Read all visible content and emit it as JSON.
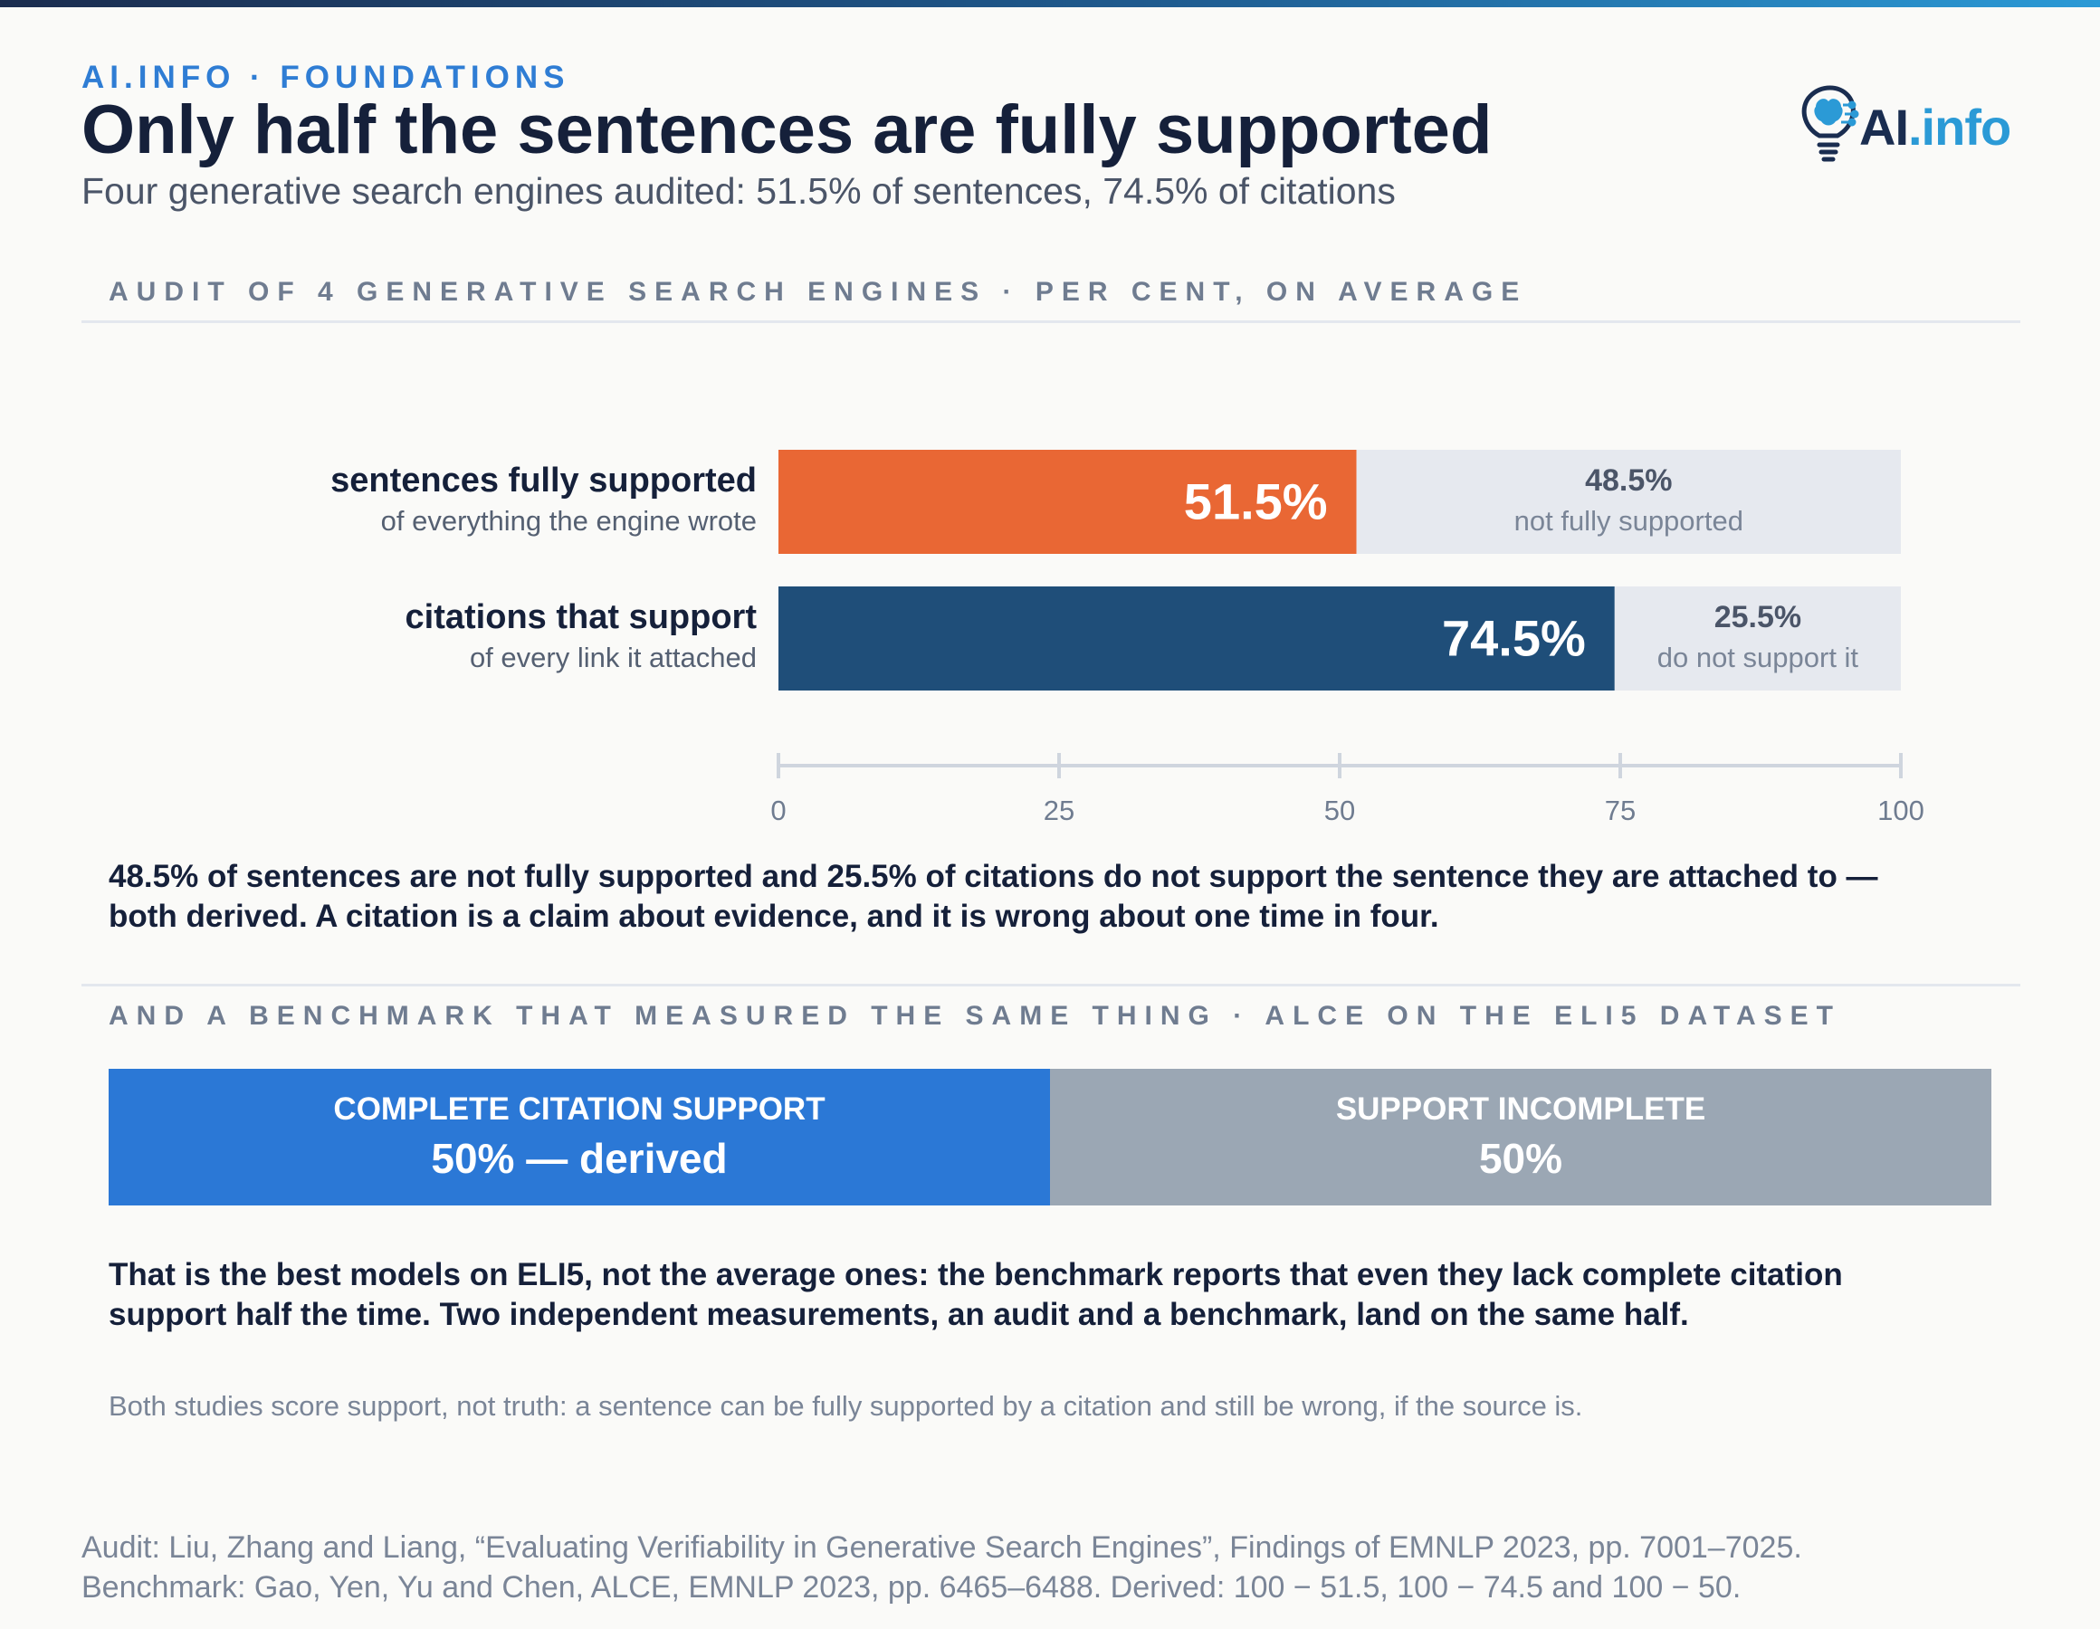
{
  "header": {
    "kicker": "AI.INFO · FOUNDATIONS",
    "title": "Only half the sentences are fully supported",
    "subtitle": "Four generative search engines audited: 51.5% of sentences, 74.5% of citations",
    "logo_ai": "AI",
    "logo_info": ".info"
  },
  "section1": {
    "label": "AUDIT OF 4 GENERATIVE SEARCH ENGINES · PER CENT, ON AVERAGE"
  },
  "rows": [
    {
      "label": "sentences fully supported",
      "sublabel": "of everything the engine wrote",
      "value_text": "51.5%",
      "rest_value_text": "48.5%",
      "rest_label": "not fully supported"
    },
    {
      "label": "citations that support",
      "sublabel": "of every link it attached",
      "value_text": "74.5%",
      "rest_value_text": "25.5%",
      "rest_label": "do not support it"
    }
  ],
  "chart_data": {
    "type": "bar",
    "orientation": "horizontal",
    "stacked": true,
    "categories": [
      "sentences fully supported",
      "citations that support"
    ],
    "series": [
      {
        "name": "",
        "values": [
          51.5,
          74.5
        ],
        "colors": [
          "#e96734",
          "#1f4e79"
        ]
      },
      {
        "name": "",
        "values": [
          48.5,
          25.5
        ],
        "colors": [
          "#e6e9ef",
          "#e6e9ef"
        ]
      }
    ],
    "xlim": [
      0,
      100
    ],
    "xticks": [
      0,
      25,
      50,
      75,
      100
    ],
    "grid": false
  },
  "note1": {
    "text": "48.5% of sentences are not fully supported and 25.5% of citations do not support the sentence they are attached to — both derived. A citation is a claim about evidence, and it is wrong about one time in four."
  },
  "section2": {
    "label": "AND A BENCHMARK THAT MEASURED THE SAME THING · ALCE ON THE ELI5 DATASET"
  },
  "benchmark": {
    "segments": [
      {
        "title": "COMPLETE CITATION SUPPORT",
        "value_text": "50% — derived",
        "share": 50,
        "color": "#2b78d6"
      },
      {
        "title": "SUPPORT INCOMPLETE",
        "value_text": "50%",
        "share": 50,
        "color": "#9ba7b4"
      }
    ]
  },
  "note2": {
    "text": "That is the best models on ELI5, not the average ones: the benchmark reports that even they lack complete citation support half the time. Two independent measurements, an audit and a benchmark, land on the same half."
  },
  "caveat": "Both studies score support, not truth: a sentence can be fully supported by a citation and still be wrong, if the source is.",
  "source": {
    "line1": "Audit: Liu, Zhang and Liang, “Evaluating Verifiability in Generative Search Engines”, Findings of EMNLP 2023, pp. 7001–7025.",
    "line2": "Benchmark: Gao, Yen, Yu and Chen, ALCE, EMNLP 2023, pp. 6465–6488. Derived: 100 − 51.5, 100 − 74.5 and 100 − 50."
  }
}
